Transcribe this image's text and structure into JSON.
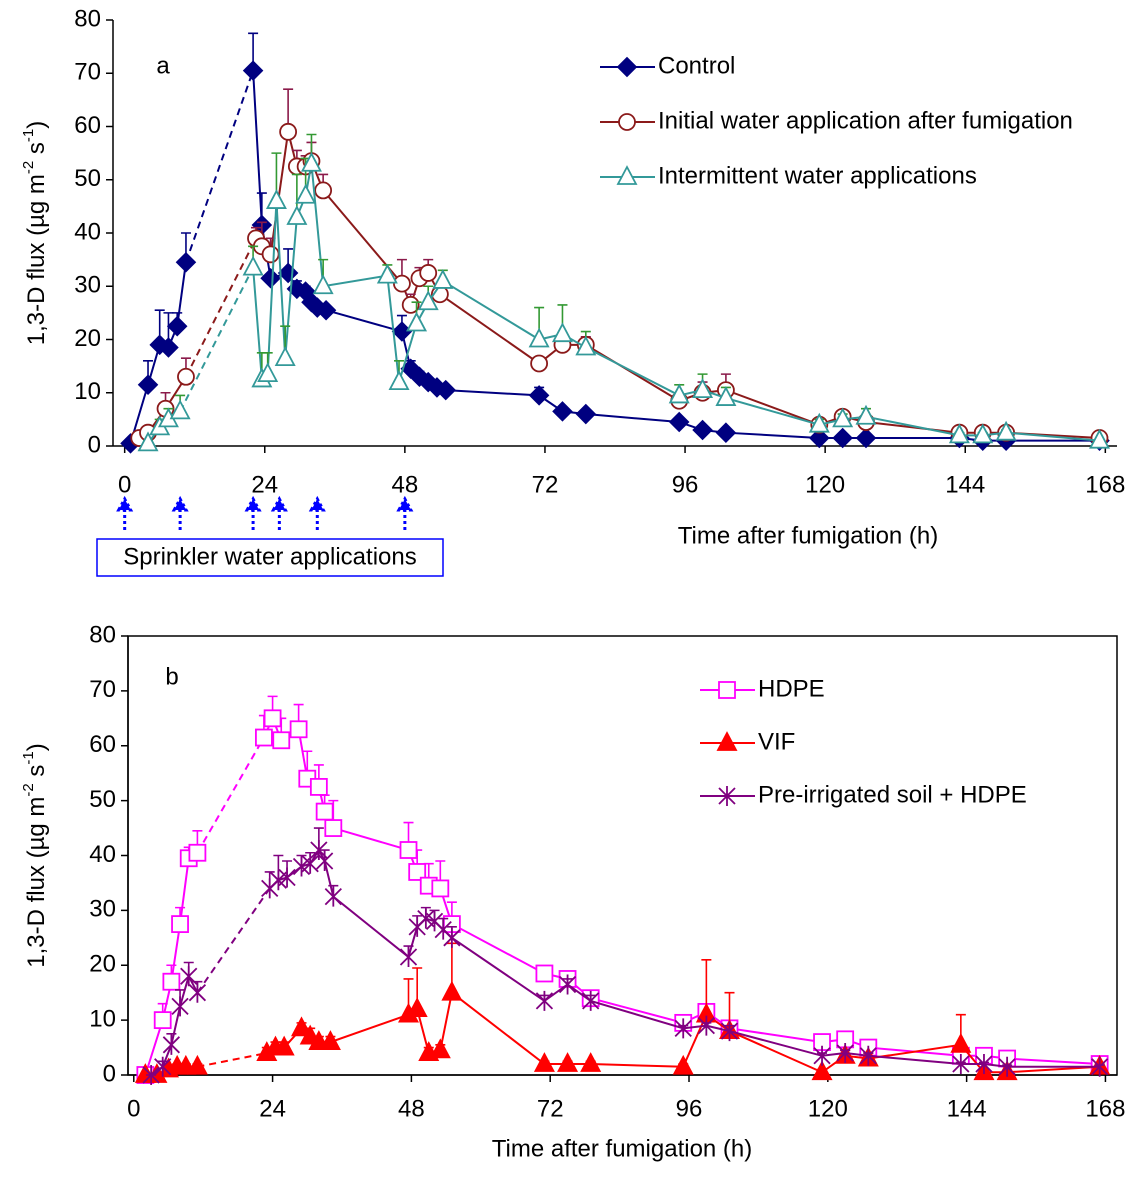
{
  "chart_data": [
    {
      "type": "line",
      "panel": "a",
      "xlabel": "Time after fumigation (h)",
      "ylabel": [
        "1,3-D flux (µg m",
        "-2",
        " s",
        "-1",
        ")"
      ],
      "xlim": [
        -2,
        170
      ],
      "ylim": [
        0,
        80
      ],
      "xticks": [
        0,
        24,
        48,
        72,
        96,
        120,
        144,
        168
      ],
      "yticks": [
        0,
        10,
        20,
        30,
        40,
        50,
        60,
        70,
        80
      ],
      "grid": false,
      "box": false,
      "legend": "upper right",
      "annotation": {
        "text": "Sprinkler water applications",
        "arrow_x": [
          0,
          9.5,
          22,
          26.5,
          33,
          48
        ],
        "color": "#0000ff"
      },
      "series": [
        {
          "name": "Control",
          "color": "#000080",
          "error_color": "#000080",
          "marker": "diamond",
          "filled": true,
          "dash_after_index": 5,
          "x": [
            1,
            4,
            6,
            7.5,
            9,
            10.5,
            22,
            23.5,
            25,
            28,
            29.5,
            31,
            32,
            33,
            34.5,
            47.5,
            49,
            50.5,
            52,
            53.5,
            55,
            71,
            75,
            79,
            95,
            99,
            103,
            119,
            123,
            127,
            143,
            147,
            151,
            167
          ],
          "values": [
            0.5,
            11.5,
            19,
            18.5,
            22.5,
            34.5,
            70.5,
            41.5,
            31.5,
            32.5,
            29.5,
            29,
            27,
            26,
            25.5,
            21.5,
            14.5,
            13,
            12,
            11,
            10.5,
            9.5,
            6.5,
            6,
            4.5,
            3,
            2.5,
            1.5,
            1.5,
            1.5,
            1.5,
            1,
            1,
            1
          ],
          "errors": [
            0.5,
            4.5,
            6.5,
            6.5,
            2.5,
            5.5,
            7,
            6,
            0,
            4.5,
            1.5,
            1,
            0.5,
            0.5,
            0.5,
            3,
            1.5,
            1,
            0.5,
            0.5,
            0.5,
            1.5,
            0.5,
            0.5,
            0.5,
            0.5,
            0.5,
            0.5,
            0.5,
            0.3,
            0.5,
            0.3,
            0.3,
            0.3
          ]
        },
        {
          "name": "Initial water application after fumigation",
          "color": "#8b1a1a",
          "error_color": "#8b1a4a",
          "marker": "circle",
          "filled": false,
          "dash_after_index": 3,
          "x": [
            2.5,
            4,
            7,
            10.5,
            22.5,
            23.5,
            25,
            28,
            29.5,
            31,
            32,
            34,
            47.5,
            49,
            50.5,
            52,
            54,
            71,
            75,
            79,
            95,
            99,
            103,
            119,
            123,
            127,
            143,
            147,
            151,
            167
          ],
          "values": [
            1.5,
            2.5,
            7,
            13,
            39,
            37.5,
            36,
            59,
            52.5,
            52.5,
            53.5,
            48,
            30.5,
            26.5,
            31.5,
            32.5,
            28.5,
            15.5,
            19,
            19,
            8.5,
            10,
            10.5,
            4,
            5.5,
            4.5,
            2.5,
            2.5,
            2.5,
            1.5
          ],
          "errors": [
            0.5,
            1,
            3,
            3.5,
            2,
            4.5,
            3,
            8,
            3,
            2,
            3.5,
            3,
            4.5,
            2,
            2,
            2.5,
            1.5,
            1,
            2,
            1.5,
            1,
            2,
            3,
            1,
            1,
            1,
            0.5,
            0.5,
            0.5,
            0.5
          ]
        },
        {
          "name": "Intermittent water applications",
          "color": "#339999",
          "error_color": "#339933",
          "marker": "triangle",
          "filled": false,
          "dash_after_index": 3,
          "x": [
            4,
            6,
            7.5,
            9.5,
            22,
            23.5,
            24.5,
            26,
            27.5,
            29.5,
            31,
            32,
            34,
            45,
            47,
            50,
            52,
            54.5,
            71,
            75,
            79,
            95,
            99,
            103,
            119,
            123,
            127,
            143,
            147,
            151,
            167
          ],
          "values": [
            0.5,
            3.5,
            5,
            6.5,
            33.5,
            12.5,
            13.5,
            46,
            16.5,
            43,
            47,
            53,
            30,
            32,
            12,
            23,
            27,
            31,
            20,
            21,
            18.5,
            9.5,
            10.5,
            9,
            4,
            5,
            5.5,
            2,
            2,
            2.5,
            1
          ],
          "errors": [
            0.5,
            1.5,
            2,
            3,
            4,
            5,
            4,
            9,
            6,
            8,
            7,
            5.5,
            5,
            2,
            4,
            4,
            3,
            2,
            6,
            5.5,
            3,
            2,
            3,
            2,
            1,
            1,
            1.5,
            0.5,
            0.5,
            0.5,
            0.3
          ]
        }
      ]
    },
    {
      "type": "line",
      "panel": "b",
      "xlabel": "Time after fumigation (h)",
      "ylabel": [
        "1,3-D flux (µg m",
        "-2",
        " s",
        "-1",
        ")"
      ],
      "xlim": [
        -1,
        170
      ],
      "ylim": [
        0,
        80
      ],
      "xticks": [
        0,
        24,
        48,
        72,
        96,
        120,
        144,
        168
      ],
      "yticks": [
        0,
        10,
        20,
        30,
        40,
        50,
        60,
        70,
        80
      ],
      "grid": false,
      "box": true,
      "legend": "upper right",
      "series": [
        {
          "name": "HDPE",
          "color": "#ff00ff",
          "error_color": "#ff00ff",
          "marker": "square",
          "filled": false,
          "dash_after_index": 5,
          "x": [
            2,
            5,
            6.5,
            8,
            9.5,
            11,
            22.5,
            24,
            25.5,
            28.5,
            30,
            32,
            33,
            34.5,
            47.5,
            49,
            51,
            53,
            55,
            71,
            75,
            79,
            95,
            99,
            103,
            119,
            123,
            127,
            143,
            147,
            151,
            167
          ],
          "values": [
            0,
            10,
            17,
            27.5,
            39.5,
            40.5,
            61.5,
            65,
            61,
            63,
            54,
            52.5,
            48,
            45,
            41,
            37,
            34.5,
            34,
            27.5,
            18.5,
            17.5,
            14,
            9.5,
            11.5,
            8.5,
            6,
            6.5,
            5,
            3.5,
            3.5,
            3,
            2
          ],
          "errors": [
            0,
            3,
            3,
            3,
            2,
            4,
            4,
            4,
            4,
            4.5,
            5,
            4,
            3,
            5,
            5,
            4,
            4,
            5,
            4,
            1,
            1,
            1,
            0.5,
            1,
            0.5,
            0.5,
            0.5,
            0.5,
            0.3,
            0.3,
            0.3,
            0.3
          ]
        },
        {
          "name": "VIF",
          "color": "#ff0000",
          "error_color": "#ff0000",
          "marker": "triangle",
          "filled": true,
          "dash_after_index": 5,
          "x": [
            2,
            4,
            6,
            7.5,
            9,
            11,
            23,
            24.5,
            26,
            29,
            30.5,
            32,
            34,
            47.5,
            49,
            51,
            53,
            55,
            71,
            75,
            79,
            95,
            99,
            103,
            119,
            123,
            127,
            143,
            147,
            151,
            167
          ],
          "values": [
            0,
            0,
            1,
            1.5,
            1.5,
            1.5,
            4,
            5,
            5,
            8.5,
            7,
            6,
            6,
            11,
            12,
            4,
            4.5,
            15,
            2,
            2,
            2,
            1.5,
            11,
            8,
            0.5,
            3.5,
            3,
            5.5,
            0.5,
            0.5,
            1.5
          ],
          "errors": [
            0,
            0,
            0.5,
            0.5,
            0.5,
            0.5,
            1,
            1,
            1,
            1,
            1.5,
            1,
            1,
            6.5,
            7.5,
            1,
            1,
            9,
            0.5,
            0.5,
            0.5,
            0.5,
            10,
            7,
            0.5,
            1,
            1,
            5.5,
            0.3,
            0.3,
            0.5
          ]
        },
        {
          "name": "Pre-irrigated soil + HDPE",
          "color": "#800080",
          "error_color": "#800080",
          "marker": "asterisk",
          "filled": false,
          "dash_after_index": 5,
          "x": [
            3,
            5,
            6.5,
            8,
            9.5,
            11,
            23.5,
            25,
            26.5,
            29,
            30.5,
            32,
            33,
            34.5,
            47.5,
            49,
            50.5,
            52,
            53.5,
            55,
            71,
            75,
            79,
            95,
            99,
            103,
            119,
            123,
            127,
            143,
            147,
            151,
            167
          ],
          "values": [
            0,
            1.5,
            5.5,
            12.5,
            18,
            15,
            34,
            35.5,
            36,
            38,
            38.5,
            41,
            39,
            32.5,
            21.5,
            27,
            28.5,
            28,
            26.5,
            25,
            13.5,
            16.5,
            13.5,
            8.5,
            9,
            8,
            3.5,
            4,
            3.5,
            2,
            2,
            1.5,
            1.5
          ],
          "errors": [
            0,
            1,
            2,
            3,
            2.5,
            2,
            3,
            4.5,
            3,
            2,
            2,
            4,
            2,
            2,
            2,
            2,
            2,
            2,
            2,
            2,
            1,
            1,
            1,
            0.5,
            0.5,
            1,
            0.5,
            0.5,
            0.5,
            0.3,
            0.3,
            0.3,
            0.3
          ]
        }
      ]
    }
  ]
}
